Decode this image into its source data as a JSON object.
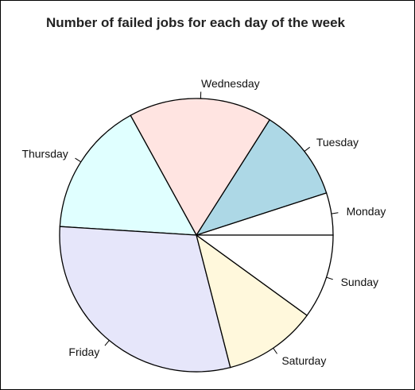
{
  "chart_data": {
    "type": "pie",
    "title": "Number of failed jobs for each day of the week",
    "start_angle_deg": 0,
    "direction": "counterclockwise",
    "slices": [
      {
        "label": "Monday",
        "value": 5,
        "color": "#ffffff"
      },
      {
        "label": "Tuesday",
        "value": 11,
        "color": "#add8e6"
      },
      {
        "label": "Wednesday",
        "value": 17,
        "color": "#ffe4e1"
      },
      {
        "label": "Thursday",
        "value": 16,
        "color": "#e0ffff"
      },
      {
        "label": "Friday",
        "value": 30,
        "color": "#e6e6fa"
      },
      {
        "label": "Saturday",
        "value": 11,
        "color": "#fff8dc"
      },
      {
        "label": "Sunday",
        "value": 10,
        "color": "#ffffff"
      }
    ]
  }
}
